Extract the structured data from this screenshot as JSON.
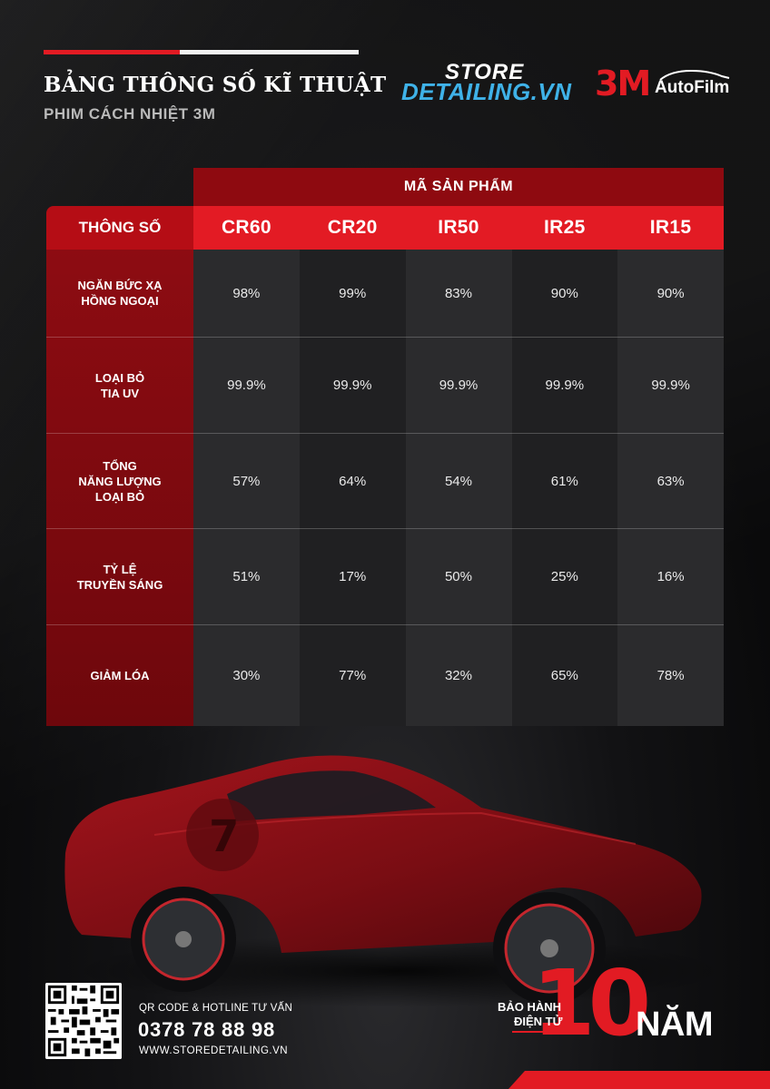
{
  "header": {
    "title": "BẢNG THÔNG SỐ KĨ THUẬT",
    "subtitle": "PHIM CÁCH NHIỆT 3M"
  },
  "logos": {
    "store_line1": "STORE",
    "store_line2": "DETAILING.VN",
    "brand_3m": "3M",
    "brand_autofilm": "AutoFilm"
  },
  "table": {
    "group_header": "MÃ SẢN PHẨM",
    "param_header": "THÔNG SỐ",
    "codes": [
      "CR60",
      "CR20",
      "IR50",
      "IR25",
      "IR15"
    ],
    "rows": [
      {
        "label": "NGĂN BỨC XẠ\nHỒNG NGOẠI",
        "values": [
          "98%",
          "99%",
          "83%",
          "90%",
          "90%"
        ]
      },
      {
        "label": "LOẠI BỎ\nTIA UV",
        "values": [
          "99.9%",
          "99.9%",
          "99.9%",
          "99.9%",
          "99.9%"
        ]
      },
      {
        "label": "TỔNG\nNĂNG LƯỢNG\nLOẠI BỎ",
        "values": [
          "57%",
          "64%",
          "54%",
          "61%",
          "63%"
        ]
      },
      {
        "label": "TỶ LỆ\nTRUYỀN SÁNG",
        "values": [
          "51%",
          "17%",
          "50%",
          "25%",
          "16%"
        ]
      },
      {
        "label": "GIẢM LÓA",
        "values": [
          "30%",
          "77%",
          "32%",
          "65%",
          "78%"
        ]
      }
    ]
  },
  "footer": {
    "qr_label": "QR CODE & HOTLINE TƯ VẤN",
    "hotline": "0378 78 88 98",
    "website": "WWW.STOREDETAILING.VN",
    "warranty_line1": "BẢO HÀNH",
    "warranty_line2": "ĐIỆN TỬ",
    "warranty_number": "10",
    "warranty_unit": "NĂM"
  },
  "colors": {
    "accent_red": "#e21b23",
    "dark_red": "#8e0a10",
    "store_blue": "#3fb2e8",
    "background": "#0b0b0c"
  }
}
